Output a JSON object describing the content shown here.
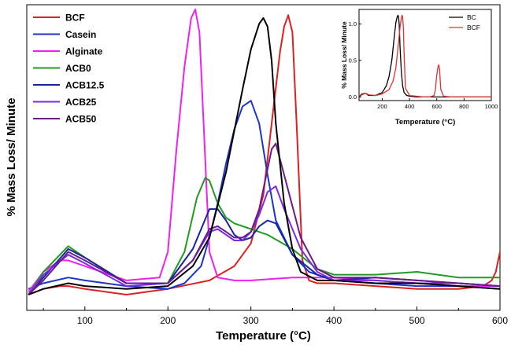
{
  "chart_data": [
    {
      "type": "line",
      "xlabel": "Temperature (°C)",
      "ylabel": "% Mass Loss/ Minute",
      "xlim": [
        30,
        600
      ],
      "ylim": [
        0,
        1.0
      ],
      "x_ticks": [
        "100",
        "200",
        "300",
        "400",
        "500",
        "600"
      ],
      "y_ticks_shown": false,
      "grid": false,
      "legend_placement": "top-left",
      "series": [
        {
          "name": "BCF",
          "color": "#dd2020",
          "x": [
            32,
            50,
            70,
            80,
            100,
            150,
            200,
            250,
            280,
            300,
            315,
            325,
            335,
            340,
            345,
            350,
            355,
            362,
            370,
            380,
            400,
            450,
            500,
            550,
            580,
            590,
            595,
            600
          ],
          "y": [
            0.0,
            0.02,
            0.03,
            0.03,
            0.02,
            0.0,
            0.02,
            0.05,
            0.1,
            0.18,
            0.35,
            0.6,
            0.85,
            0.94,
            0.98,
            0.92,
            0.6,
            0.12,
            0.05,
            0.04,
            0.04,
            0.03,
            0.02,
            0.02,
            0.03,
            0.05,
            0.08,
            0.15
          ]
        },
        {
          "name": "Casein",
          "color": "#1a35c8",
          "x": [
            32,
            50,
            80,
            100,
            150,
            200,
            220,
            240,
            250,
            260,
            270,
            280,
            290,
            300,
            310,
            320,
            330,
            350,
            370,
            400,
            450,
            500,
            550,
            600
          ],
          "y": [
            0.02,
            0.04,
            0.06,
            0.05,
            0.03,
            0.02,
            0.04,
            0.1,
            0.2,
            0.32,
            0.46,
            0.58,
            0.66,
            0.68,
            0.6,
            0.42,
            0.26,
            0.14,
            0.08,
            0.05,
            0.04,
            0.03,
            0.03,
            0.02
          ]
        },
        {
          "name": "Alginate",
          "color": "#ee22ee",
          "x": [
            32,
            50,
            70,
            80,
            100,
            150,
            190,
            200,
            210,
            220,
            228,
            233,
            238,
            243,
            250,
            260,
            280,
            300,
            350,
            400,
            450,
            500,
            550,
            600
          ],
          "y": [
            0.01,
            0.08,
            0.12,
            0.12,
            0.1,
            0.05,
            0.06,
            0.15,
            0.5,
            0.8,
            0.97,
            1.0,
            0.92,
            0.6,
            0.15,
            0.06,
            0.05,
            0.05,
            0.06,
            0.06,
            0.05,
            0.04,
            0.03,
            0.03
          ]
        },
        {
          "name": "ACB0",
          "color": "#239a23",
          "x": [
            32,
            50,
            80,
            100,
            150,
            200,
            220,
            235,
            245,
            250,
            260,
            270,
            280,
            300,
            320,
            350,
            380,
            400,
            450,
            500,
            550,
            600
          ],
          "y": [
            0.0,
            0.08,
            0.17,
            0.13,
            0.04,
            0.04,
            0.15,
            0.34,
            0.41,
            0.4,
            0.32,
            0.27,
            0.25,
            0.23,
            0.21,
            0.16,
            0.09,
            0.07,
            0.07,
            0.08,
            0.06,
            0.06
          ]
        },
        {
          "name": "ACB12.5",
          "color": "#18259a",
          "x": [
            32,
            50,
            80,
            100,
            150,
            200,
            230,
            250,
            260,
            270,
            280,
            290,
            300,
            310,
            320,
            330,
            350,
            380,
            400,
            450,
            500,
            550,
            600
          ],
          "y": [
            0.0,
            0.06,
            0.16,
            0.13,
            0.04,
            0.04,
            0.16,
            0.3,
            0.3,
            0.26,
            0.21,
            0.19,
            0.2,
            0.24,
            0.26,
            0.25,
            0.14,
            0.07,
            0.05,
            0.06,
            0.05,
            0.04,
            0.03
          ]
        },
        {
          "name": "ACB25",
          "color": "#7c2ae0",
          "x": [
            32,
            50,
            80,
            100,
            150,
            200,
            230,
            250,
            260,
            270,
            280,
            290,
            300,
            310,
            320,
            330,
            340,
            360,
            380,
            400,
            450,
            500,
            550,
            600
          ],
          "y": [
            0.0,
            0.07,
            0.14,
            0.11,
            0.03,
            0.04,
            0.12,
            0.22,
            0.23,
            0.21,
            0.19,
            0.19,
            0.22,
            0.28,
            0.36,
            0.38,
            0.3,
            0.16,
            0.08,
            0.05,
            0.05,
            0.04,
            0.04,
            0.03
          ]
        },
        {
          "name": "ACB50",
          "color": "#6a1a8a",
          "x": [
            32,
            50,
            80,
            100,
            150,
            200,
            230,
            250,
            260,
            270,
            280,
            290,
            300,
            310,
            320,
            325,
            330,
            340,
            360,
            380,
            400,
            450,
            500,
            550,
            600
          ],
          "y": [
            0.0,
            0.05,
            0.15,
            0.12,
            0.04,
            0.04,
            0.12,
            0.23,
            0.24,
            0.22,
            0.2,
            0.2,
            0.22,
            0.3,
            0.44,
            0.51,
            0.53,
            0.42,
            0.2,
            0.09,
            0.06,
            0.06,
            0.05,
            0.04,
            0.03
          ]
        },
        {
          "name": "",
          "color": "#000000",
          "x": [
            32,
            50,
            80,
            100,
            150,
            200,
            230,
            250,
            270,
            290,
            300,
            310,
            315,
            320,
            325,
            330,
            340,
            350,
            360,
            380,
            400,
            450,
            500,
            550,
            600
          ],
          "y": [
            0.0,
            0.02,
            0.04,
            0.03,
            0.02,
            0.03,
            0.1,
            0.2,
            0.43,
            0.72,
            0.86,
            0.95,
            0.97,
            0.94,
            0.82,
            0.6,
            0.32,
            0.16,
            0.08,
            0.05,
            0.05,
            0.04,
            0.04,
            0.03,
            0.02
          ]
        }
      ]
    },
    {
      "type": "line",
      "xlabel": "Temperature (°C)",
      "ylabel": "% Mass Loss/ Minute",
      "xlim": [
        30,
        1000
      ],
      "ylim": [
        -0.05,
        1.2
      ],
      "x_ticks": [
        "200",
        "400",
        "600",
        "800",
        "1000"
      ],
      "y_ticks": [
        "0.0",
        "0.5",
        "1.0"
      ],
      "legend_placement": "top-right",
      "series": [
        {
          "name": "BC",
          "color": "#000000",
          "x": [
            30,
            50,
            80,
            100,
            150,
            200,
            230,
            250,
            270,
            290,
            300,
            310,
            315,
            320,
            325,
            330,
            340,
            350,
            360,
            380,
            400,
            450,
            500,
            550,
            580,
            600,
            620,
            650,
            700,
            800,
            900,
            1000
          ],
          "y": [
            0.0,
            0.04,
            0.05,
            0.02,
            0.02,
            0.06,
            0.15,
            0.28,
            0.5,
            0.85,
            1.02,
            1.1,
            1.12,
            1.1,
            0.98,
            0.7,
            0.35,
            0.15,
            0.06,
            0.02,
            0.01,
            0.0,
            0.0,
            0.0,
            0.0,
            0.0,
            0.0,
            0.0,
            0.0,
            0.0,
            0.0,
            0.0
          ]
        },
        {
          "name": "BCF",
          "color": "#e03030",
          "x": [
            30,
            50,
            80,
            100,
            150,
            200,
            250,
            280,
            300,
            320,
            330,
            340,
            345,
            350,
            355,
            360,
            370,
            400,
            500,
            550,
            580,
            590,
            600,
            610,
            615,
            620,
            630,
            650,
            700,
            800,
            900,
            1000
          ],
          "y": [
            0.0,
            0.03,
            0.05,
            0.03,
            0.02,
            0.04,
            0.1,
            0.22,
            0.4,
            0.75,
            0.95,
            1.08,
            1.12,
            1.1,
            0.95,
            0.6,
            0.12,
            0.02,
            0.0,
            0.0,
            0.02,
            0.1,
            0.3,
            0.42,
            0.44,
            0.38,
            0.1,
            0.01,
            0.0,
            0.0,
            0.0,
            0.0
          ]
        }
      ]
    }
  ]
}
